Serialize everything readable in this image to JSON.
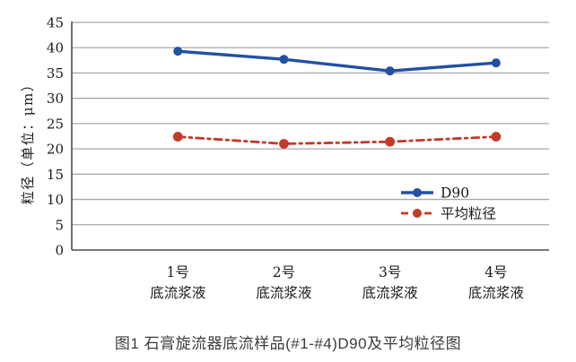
{
  "figure": {
    "caption": "图1 石膏旋流器底流样品(#1-#4)D90及平均粒径图"
  },
  "chart_data": {
    "type": "line",
    "title": "",
    "xlabel": "",
    "ylabel": "粒径（单位：μm）",
    "ylim": [
      0,
      45
    ],
    "ytick_step": 5,
    "yticks": [
      0,
      5,
      10,
      15,
      20,
      25,
      30,
      35,
      40,
      45
    ],
    "grid": true,
    "legend_position": "inside-right-middle",
    "categories": [
      "1号 底流浆液",
      "2号 底流浆液",
      "3号 底流浆液",
      "4号 底流浆液"
    ],
    "category_label_lines": [
      [
        "1号",
        "底流浆液"
      ],
      [
        "2号",
        "底流浆液"
      ],
      [
        "3号",
        "底流浆液"
      ],
      [
        "4号",
        "底流浆液"
      ]
    ],
    "series": [
      {
        "name": "D90",
        "values": [
          39.3,
          37.7,
          35.4,
          37.0
        ],
        "color": "#2351a2",
        "line_style": "solid",
        "marker": "circle"
      },
      {
        "name": "平均粒径",
        "values": [
          22.4,
          21.0,
          21.4,
          22.4
        ],
        "color": "#c23a28",
        "line_style": "dash-dot",
        "marker": "circle"
      }
    ]
  },
  "colors": {
    "background": "#ffffff",
    "gridline": "#a9a9a9",
    "axis": "#4d4d4d",
    "tick_text": "#1a1a1a",
    "caption_text": "#3c3c3c",
    "d90_blue": "#2351a2",
    "mean_red": "#c23a28"
  }
}
